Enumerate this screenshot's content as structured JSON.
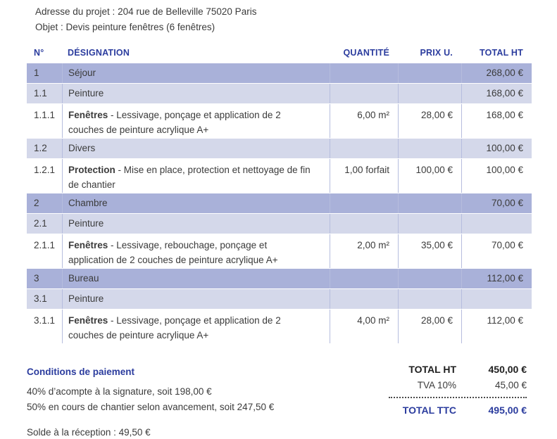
{
  "header": {
    "address_line": "Adresse du projet : 204 rue de Belleville 75020 Paris",
    "object_line": "Objet : Devis peinture fenêtres (6 fenêtres)"
  },
  "table": {
    "columns": {
      "num": "N°",
      "designation": "DÉSIGNATION",
      "quantity": "QUANTITÉ",
      "unit_price": "PRIX U.",
      "total": "TOTAL HT"
    },
    "rows": [
      {
        "num": "1",
        "title": "",
        "desc": "Séjour",
        "qty": "",
        "unit_price": "",
        "total": "268,00 €"
      },
      {
        "num": "1.1",
        "title": "",
        "desc": "Peinture",
        "qty": "",
        "unit_price": "",
        "total": "168,00 €"
      },
      {
        "num": "1.1.1",
        "title": "Fenêtres",
        "desc": " - Lessivage, ponçage et application de 2 couches de peinture acrylique A+",
        "qty": "6,00 m²",
        "unit_price": "28,00 €",
        "total": "168,00 €"
      },
      {
        "num": "1.2",
        "title": "",
        "desc": "Divers",
        "qty": "",
        "unit_price": "",
        "total": "100,00 €"
      },
      {
        "num": "1.2.1",
        "title": "Protection",
        "desc": " - Mise en place, protection et nettoyage de fin de chantier",
        "qty": "1,00 forfait",
        "unit_price": "100,00 €",
        "total": "100,00 €"
      },
      {
        "num": "2",
        "title": "",
        "desc": "Chambre",
        "qty": "",
        "unit_price": "",
        "total": "70,00 €"
      },
      {
        "num": "2.1",
        "title": "",
        "desc": "Peinture",
        "qty": "",
        "unit_price": "",
        "total": ""
      },
      {
        "num": "2.1.1",
        "title": "Fenêtres",
        "desc": " - Lessivage, rebouchage, ponçage et application de 2 couches de peinture acrylique A+",
        "qty": "2,00 m²",
        "unit_price": "35,00 €",
        "total": "70,00 €"
      },
      {
        "num": "3",
        "title": "",
        "desc": "Bureau",
        "qty": "",
        "unit_price": "",
        "total": "112,00 €"
      },
      {
        "num": "3.1",
        "title": "",
        "desc": "Peinture",
        "qty": "",
        "unit_price": "",
        "total": ""
      },
      {
        "num": "3.1.1",
        "title": "Fenêtres",
        "desc": " - Lessivage, ponçage et application de 2 couches de peinture acrylique A+",
        "qty": "4,00 m²",
        "unit_price": "28,00 €",
        "total": "112,00 €"
      }
    ]
  },
  "payment": {
    "title": "Conditions de paiement",
    "line1": "40% d’acompte à la signature, soit 198,00 €",
    "line2": "50% en cours de chantier selon avancement, soit 247,50 €",
    "solde": "Solde à la réception : 49,50 €"
  },
  "totals": {
    "total_ht_label": "TOTAL HT",
    "total_ht_value": "450,00 €",
    "tva_label": "TVA 10%",
    "tva_value": "45,00 €",
    "total_ttc_label": "TOTAL TTC",
    "total_ttc_value": "495,00 €"
  },
  "colors": {
    "accent_blue": "#2b3c9e",
    "section_row_bg": "#a9b1d9",
    "sub_row_bg": "#d4d8ea",
    "cell_border": "#b6bdde",
    "body_text": "#3b3b3b"
  }
}
